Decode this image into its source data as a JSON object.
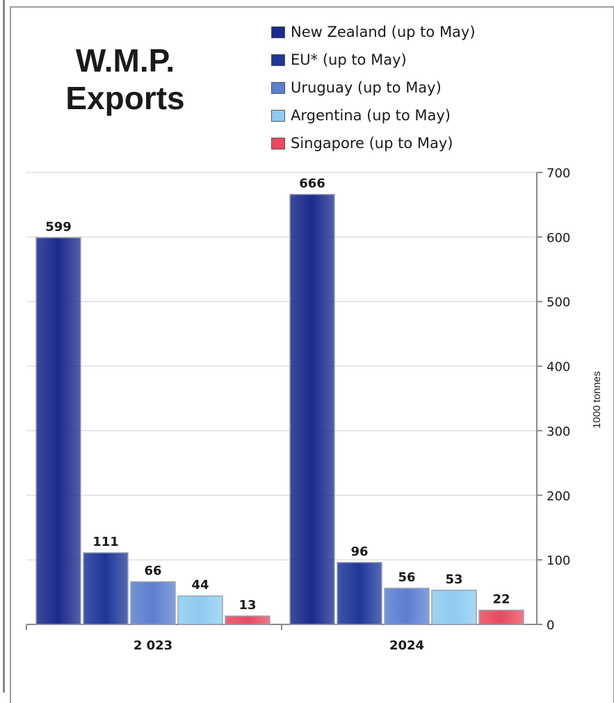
{
  "chart_data": {
    "type": "bar",
    "title": "W.M.P. Exports",
    "ylabel": "1000 tonnes",
    "xlabel": "",
    "ylim": [
      0,
      700
    ],
    "yticks": [
      0,
      100,
      200,
      300,
      400,
      500,
      600,
      700
    ],
    "categories": [
      "2 023",
      "2024"
    ],
    "series": [
      {
        "name": "New Zealand (up to May)",
        "values": [
          599,
          666
        ],
        "color": "#1a2b8c"
      },
      {
        "name": "EU* (up to May)",
        "values": [
          111,
          96
        ],
        "color": "#1e3799"
      },
      {
        "name": "Uruguay (up to May)",
        "values": [
          66,
          56
        ],
        "color": "#5b7fd0"
      },
      {
        "name": "Argentina (up to May)",
        "values": [
          44,
          53
        ],
        "color": "#8ecbf0"
      },
      {
        "name": "Singapore (up to May)",
        "values": [
          13,
          22
        ],
        "color": "#e84a5f"
      }
    ],
    "grid": true,
    "legend_position": "top-right"
  }
}
